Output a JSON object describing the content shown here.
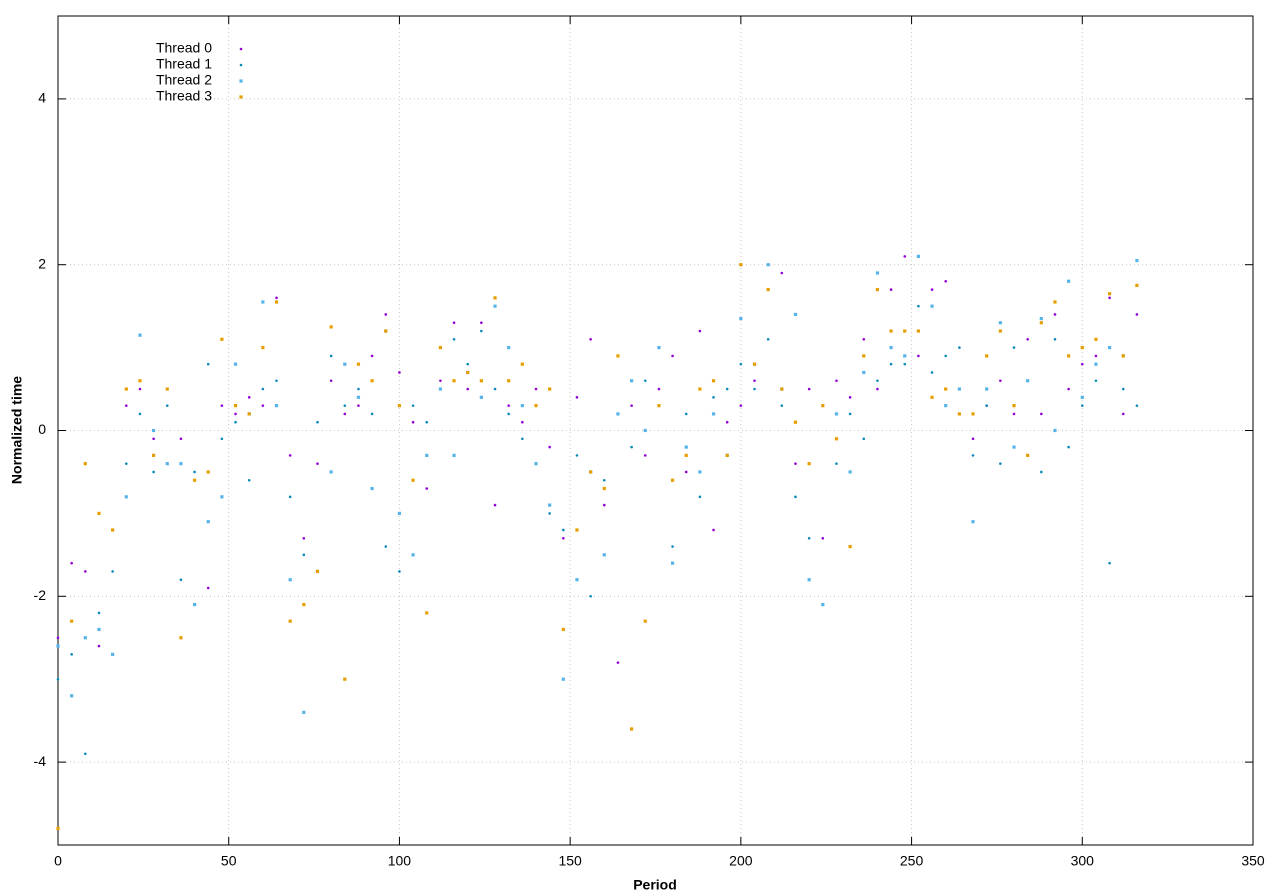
{
  "chart_data": {
    "type": "scatter",
    "x_label": "Period",
    "y_label": "Normalized time",
    "xlim": [
      0,
      350
    ],
    "xticks": [
      0,
      50,
      100,
      150,
      200,
      250,
      300,
      350
    ],
    "ylim": [
      -5,
      5
    ],
    "yticks": [
      -4,
      -2,
      0,
      2,
      4
    ],
    "grid": true,
    "legend": "top-left",
    "x": [
      0,
      4,
      8,
      12,
      16,
      20,
      24,
      28,
      32,
      36,
      40,
      44,
      48,
      52,
      56,
      60,
      64,
      68,
      72,
      76,
      80,
      84,
      88,
      92,
      96,
      100,
      104,
      108,
      112,
      116,
      120,
      124,
      128,
      132,
      136,
      140,
      144,
      148,
      152,
      156,
      160,
      164,
      168,
      172,
      176,
      180,
      184,
      188,
      192,
      196,
      200,
      204,
      208,
      212,
      216,
      220,
      224,
      228,
      232,
      236,
      240,
      244,
      248,
      252,
      256,
      260,
      264,
      268,
      272,
      276,
      280,
      284,
      288,
      292,
      296,
      300,
      304,
      308,
      312,
      316
    ],
    "series": [
      {
        "name": "Thread 0",
        "color": "#9400d3",
        "marker": "dot",
        "values": [
          -2.5,
          -1.6,
          -1.7,
          -2.6,
          -1.2,
          0.3,
          0.5,
          -0.1,
          0.5,
          -0.1,
          -0.6,
          -1.9,
          0.3,
          0.2,
          0.4,
          0.3,
          1.6,
          -0.3,
          -1.3,
          -0.4,
          0.6,
          0.2,
          0.3,
          0.9,
          1.4,
          0.7,
          0.1,
          -0.7,
          0.6,
          1.3,
          0.5,
          1.3,
          -0.9,
          0.3,
          0.1,
          0.5,
          -0.2,
          -1.3,
          0.4,
          1.1,
          -0.9,
          -2.8,
          0.3,
          -0.3,
          0.5,
          0.9,
          -0.5,
          1.2,
          -1.2,
          0.1,
          0.3,
          0.6,
          1.7,
          1.9,
          -0.4,
          0.5,
          -1.3,
          0.6,
          0.4,
          1.1,
          0.5,
          1.7,
          2.1,
          0.9,
          1.7,
          1.8,
          0.2,
          -0.1,
          0.3,
          0.6,
          0.2,
          1.1,
          0.2,
          1.4,
          0.5,
          0.8,
          0.9,
          1.6,
          0.2,
          1.4
        ]
      },
      {
        "name": "Thread 1",
        "color": "#0a8ab8",
        "marker": "dot",
        "values": [
          -3.0,
          -2.7,
          -3.9,
          -2.2,
          -1.7,
          -0.4,
          0.2,
          -0.5,
          0.3,
          -1.8,
          -0.5,
          0.8,
          -0.1,
          0.1,
          -0.6,
          0.5,
          0.6,
          -0.8,
          -1.5,
          0.1,
          0.9,
          0.3,
          0.5,
          0.2,
          -1.4,
          -1.7,
          0.3,
          0.1,
          0.5,
          1.1,
          0.8,
          1.2,
          0.5,
          0.2,
          -0.1,
          0.3,
          -1.0,
          -1.2,
          -0.3,
          -2.0,
          -0.6,
          0.2,
          -0.2,
          0.6,
          0.3,
          -1.4,
          0.2,
          -0.8,
          0.4,
          0.5,
          0.8,
          0.5,
          1.1,
          0.3,
          -0.8,
          -1.3,
          0.3,
          -0.4,
          0.2,
          -0.1,
          0.6,
          0.8,
          0.8,
          1.5,
          0.7,
          0.9,
          1.0,
          -0.3,
          0.3,
          -0.4,
          1.0,
          -0.3,
          -0.5,
          1.1,
          -0.2,
          0.3,
          0.6,
          -1.6,
          0.5,
          0.3
        ]
      },
      {
        "name": "Thread 2",
        "color": "#56b4e9",
        "marker": "square",
        "values": [
          -2.6,
          -3.2,
          -2.5,
          -2.4,
          -2.7,
          -0.8,
          1.15,
          0.0,
          -0.4,
          -0.4,
          -2.1,
          -1.1,
          -0.8,
          0.8,
          0.2,
          1.55,
          0.3,
          -1.8,
          -3.4,
          -1.7,
          -0.5,
          0.8,
          0.4,
          -0.7,
          1.2,
          -1.0,
          -1.5,
          -0.3,
          0.5,
          -0.3,
          0.7,
          0.4,
          1.5,
          1.0,
          0.3,
          -0.4,
          -0.9,
          -3.0,
          -1.8,
          -0.5,
          -1.5,
          0.2,
          0.6,
          0.0,
          1.0,
          -1.6,
          -0.2,
          -0.5,
          0.2,
          -0.3,
          1.35,
          0.8,
          2.0,
          0.5,
          1.4,
          -1.8,
          -2.1,
          0.2,
          -0.5,
          0.7,
          1.9,
          1.0,
          0.9,
          2.1,
          1.5,
          0.3,
          0.5,
          -1.1,
          0.5,
          1.3,
          -0.2,
          0.6,
          1.35,
          0.0,
          1.8,
          0.4,
          0.8,
          1.0,
          0.9,
          2.05
        ]
      },
      {
        "name": "Thread 3",
        "color": "#e69f00",
        "marker": "square",
        "values": [
          -4.8,
          -2.3,
          -0.4,
          -1.0,
          -1.2,
          0.5,
          0.6,
          -0.3,
          0.5,
          -2.5,
          -0.6,
          -0.5,
          1.1,
          0.3,
          0.2,
          1.0,
          1.55,
          -2.3,
          -2.1,
          -1.7,
          1.25,
          -3.0,
          0.8,
          0.6,
          1.2,
          0.3,
          -0.6,
          -2.2,
          1.0,
          0.6,
          0.7,
          0.6,
          1.6,
          0.6,
          0.8,
          0.3,
          0.5,
          -2.4,
          -1.2,
          -0.5,
          -0.7,
          0.9,
          -3.6,
          -2.3,
          0.3,
          -0.6,
          -0.3,
          0.5,
          0.6,
          -0.3,
          2.0,
          0.8,
          1.7,
          0.5,
          0.1,
          -0.4,
          0.3,
          -0.1,
          -1.4,
          0.9,
          1.7,
          1.2,
          1.2,
          1.2,
          0.4,
          0.5,
          0.2,
          0.2,
          0.9,
          1.2,
          0.3,
          -0.3,
          1.3,
          1.55,
          0.9,
          1.0,
          1.1,
          1.65,
          0.9,
          1.75
        ]
      }
    ]
  }
}
